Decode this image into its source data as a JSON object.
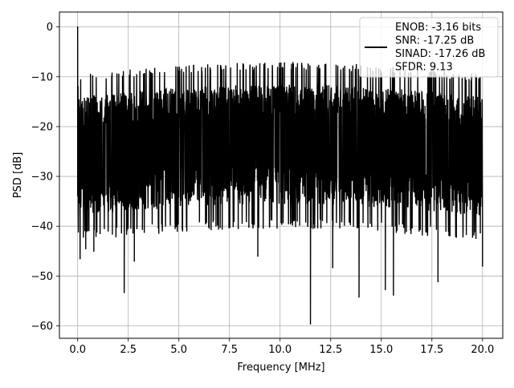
{
  "chart_data": {
    "type": "line",
    "title": "",
    "xlabel": "Frequency [MHz]",
    "ylabel": "PSD [dB]",
    "xlim": [
      -0.9,
      21.0
    ],
    "ylim": [
      -62.5,
      3.0
    ],
    "xticks": [
      0.0,
      2.5,
      5.0,
      7.5,
      10.0,
      12.5,
      15.0,
      17.5,
      20.0
    ],
    "xtick_labels": [
      "0.0",
      "2.5",
      "5.0",
      "7.5",
      "10.0",
      "12.5",
      "15.0",
      "17.5",
      "20.0"
    ],
    "yticks": [
      0,
      -10,
      -20,
      -30,
      -40,
      -50,
      -60
    ],
    "ytick_labels": [
      "0",
      "−10",
      "−20",
      "−30",
      "−40",
      "−50",
      "−60"
    ],
    "grid": true,
    "legend_position": "top-right",
    "legend_entries": [
      "ENOB: -3.16 bits",
      "SNR: -17.25 dB",
      "SINAD: -17.26 dB",
      "SFDR: 9.13"
    ],
    "series_color": "#000000",
    "noise_floor": {
      "x_start": 0.0,
      "x_end": 20.0,
      "envelope_db": [
        -12,
        -40
      ]
    },
    "peaks": [
      {
        "x": 0.0,
        "y": 0.0
      },
      {
        "x": 0.02,
        "y": -12.0
      },
      {
        "x": 0.05,
        "y": -33.0
      },
      {
        "x": 0.12,
        "y": -46.5
      },
      {
        "x": 0.4,
        "y": -44.5
      },
      {
        "x": 0.8,
        "y": -45.0
      },
      {
        "x": 2.3,
        "y": -53.3
      },
      {
        "x": 2.8,
        "y": -47.0
      },
      {
        "x": 8.9,
        "y": -46.0
      },
      {
        "x": 11.5,
        "y": -59.6
      },
      {
        "x": 12.6,
        "y": -48.3
      },
      {
        "x": 13.9,
        "y": -54.2
      },
      {
        "x": 15.2,
        "y": -52.7
      },
      {
        "x": 15.6,
        "y": -53.8
      },
      {
        "x": 17.8,
        "y": -51.1
      },
      {
        "x": 20.0,
        "y": -48.0
      }
    ]
  }
}
